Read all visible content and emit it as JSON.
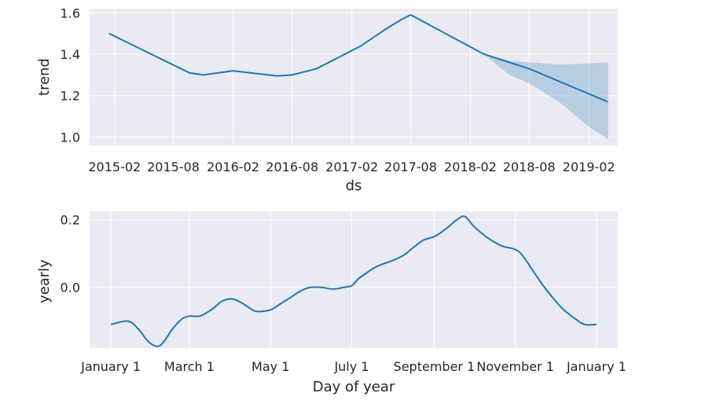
{
  "chart_data": [
    {
      "type": "line",
      "xlabel": "ds",
      "ylabel": "trend",
      "ylim": [
        0.96,
        1.62
      ],
      "y_ticks": [
        "1.0",
        "1.2",
        "1.4",
        "1.6"
      ],
      "x_ticks": [
        "2015-02",
        "2015-08",
        "2016-02",
        "2016-08",
        "2017-02",
        "2017-08",
        "2018-02",
        "2018-08",
        "2019-02"
      ],
      "grid": true,
      "background": "#eaeaf2",
      "line_color": "#1f77b4",
      "series": [
        {
          "x": [
            "2015-01-15",
            "2015-09-20",
            "2015-11-01",
            "2016-02-01",
            "2016-06-15",
            "2016-08-01",
            "2016-10-15",
            "2017-03-01",
            "2017-05-15",
            "2017-07-01",
            "2017-08-01",
            "2018-03-15",
            "2018-08-01",
            "2019-04-01"
          ],
          "y": [
            1.5,
            1.31,
            1.3,
            1.32,
            1.295,
            1.3,
            1.33,
            1.44,
            1.52,
            1.565,
            1.59,
            1.4,
            1.33,
            1.17
          ]
        }
      ],
      "uncertainty": {
        "x": [
          "2018-03-15",
          "2018-06-01",
          "2018-08-01",
          "2018-11-01",
          "2019-02-01",
          "2019-04-01"
        ],
        "upper": [
          1.4,
          1.37,
          1.36,
          1.35,
          1.355,
          1.36
        ],
        "lower": [
          1.4,
          1.3,
          1.26,
          1.17,
          1.05,
          0.99
        ]
      }
    },
    {
      "type": "line",
      "xlabel": "Day of year",
      "ylabel": "yearly",
      "ylim": [
        -0.18,
        0.225
      ],
      "y_ticks": [
        "0.0",
        "0.2"
      ],
      "y_tick_values": [
        0.0,
        0.2
      ],
      "x_ticks": [
        "January 1",
        "March 1",
        "May 1",
        "July 1",
        "September 1",
        "November 1",
        "January 1"
      ],
      "x_tick_days": [
        0,
        59,
        120,
        181,
        243,
        304,
        365
      ],
      "grid": true,
      "background": "#eaeaf2",
      "line_color": "#1f77b4",
      "series": [
        {
          "x": [
            0,
            13,
            21,
            28,
            35,
            40,
            46,
            53,
            59,
            67,
            76,
            84,
            92,
            100,
            108,
            116,
            121,
            127,
            135,
            143,
            150,
            158,
            167,
            175,
            181,
            186,
            193,
            199,
            205,
            212,
            220,
            228,
            235,
            243,
            249,
            254,
            260,
            266,
            273,
            282,
            290,
            296,
            302,
            307,
            312,
            318,
            325,
            332,
            340,
            348,
            356,
            365
          ],
          "y": [
            -0.11,
            -0.1,
            -0.125,
            -0.16,
            -0.175,
            -0.16,
            -0.125,
            -0.095,
            -0.085,
            -0.085,
            -0.065,
            -0.04,
            -0.035,
            -0.05,
            -0.07,
            -0.07,
            -0.065,
            -0.05,
            -0.03,
            -0.01,
            0.0,
            0.0,
            -0.005,
            0.0,
            0.005,
            0.025,
            0.045,
            0.06,
            0.07,
            0.08,
            0.095,
            0.12,
            0.14,
            0.15,
            0.165,
            0.18,
            0.2,
            0.21,
            0.18,
            0.15,
            0.13,
            0.12,
            0.115,
            0.105,
            0.08,
            0.045,
            0.005,
            -0.03,
            -0.065,
            -0.09,
            -0.11,
            -0.11
          ]
        }
      ]
    }
  ]
}
